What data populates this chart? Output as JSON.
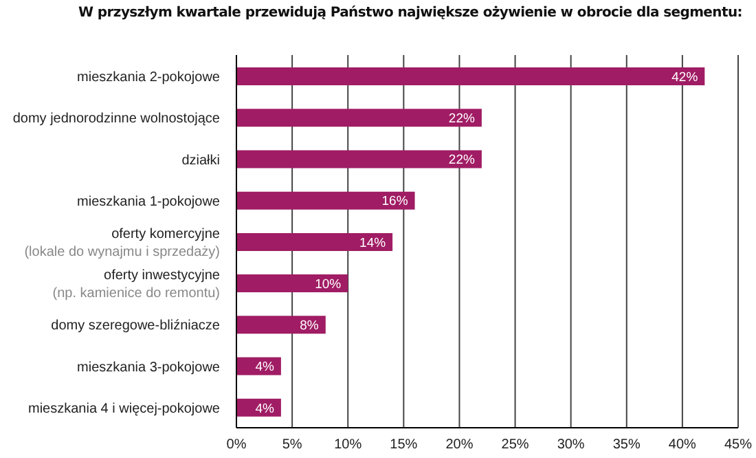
{
  "chart_data": {
    "type": "bar",
    "orientation": "horizontal",
    "title": "W przyszłym kwartale przewidują Państwo największe ożywienie w obrocie dla segmentu:",
    "categories": [
      "mieszkania 2-pokojowe",
      "domy jednorodzinne wolnostojące",
      "działki",
      "mieszkania 1-pokojowe",
      "oferty komercyjne\n(lokale do wynajmu i sprzedaży)",
      "oferty inwestycyjne\n(np. kamienice do remontu)",
      "domy szeregowe-bliźniacze",
      "mieszkania 3-pokojowe",
      "mieszkania 4 i więcej-pokojowe"
    ],
    "values": [
      42,
      22,
      22,
      16,
      14,
      10,
      8,
      4,
      4
    ],
    "value_labels": [
      "42%",
      "22%",
      "22%",
      "16%",
      "14%",
      "10%",
      "8%",
      "4%",
      "4%"
    ],
    "color": "#a01c64",
    "xlim": [
      0,
      45
    ],
    "xticks": [
      {
        "value": 0,
        "label": "0%"
      },
      {
        "value": 5,
        "label": "5%"
      },
      {
        "value": 10,
        "label": "10%"
      },
      {
        "value": 15,
        "label": "15%"
      },
      {
        "value": 20,
        "label": "20%"
      },
      {
        "value": 25,
        "label": "25%"
      },
      {
        "value": 30,
        "label": "30%"
      },
      {
        "value": 35,
        "label": "35%"
      },
      {
        "value": 40,
        "label": "40%"
      },
      {
        "value": 45,
        "label": "45%"
      }
    ],
    "grid": "x"
  }
}
